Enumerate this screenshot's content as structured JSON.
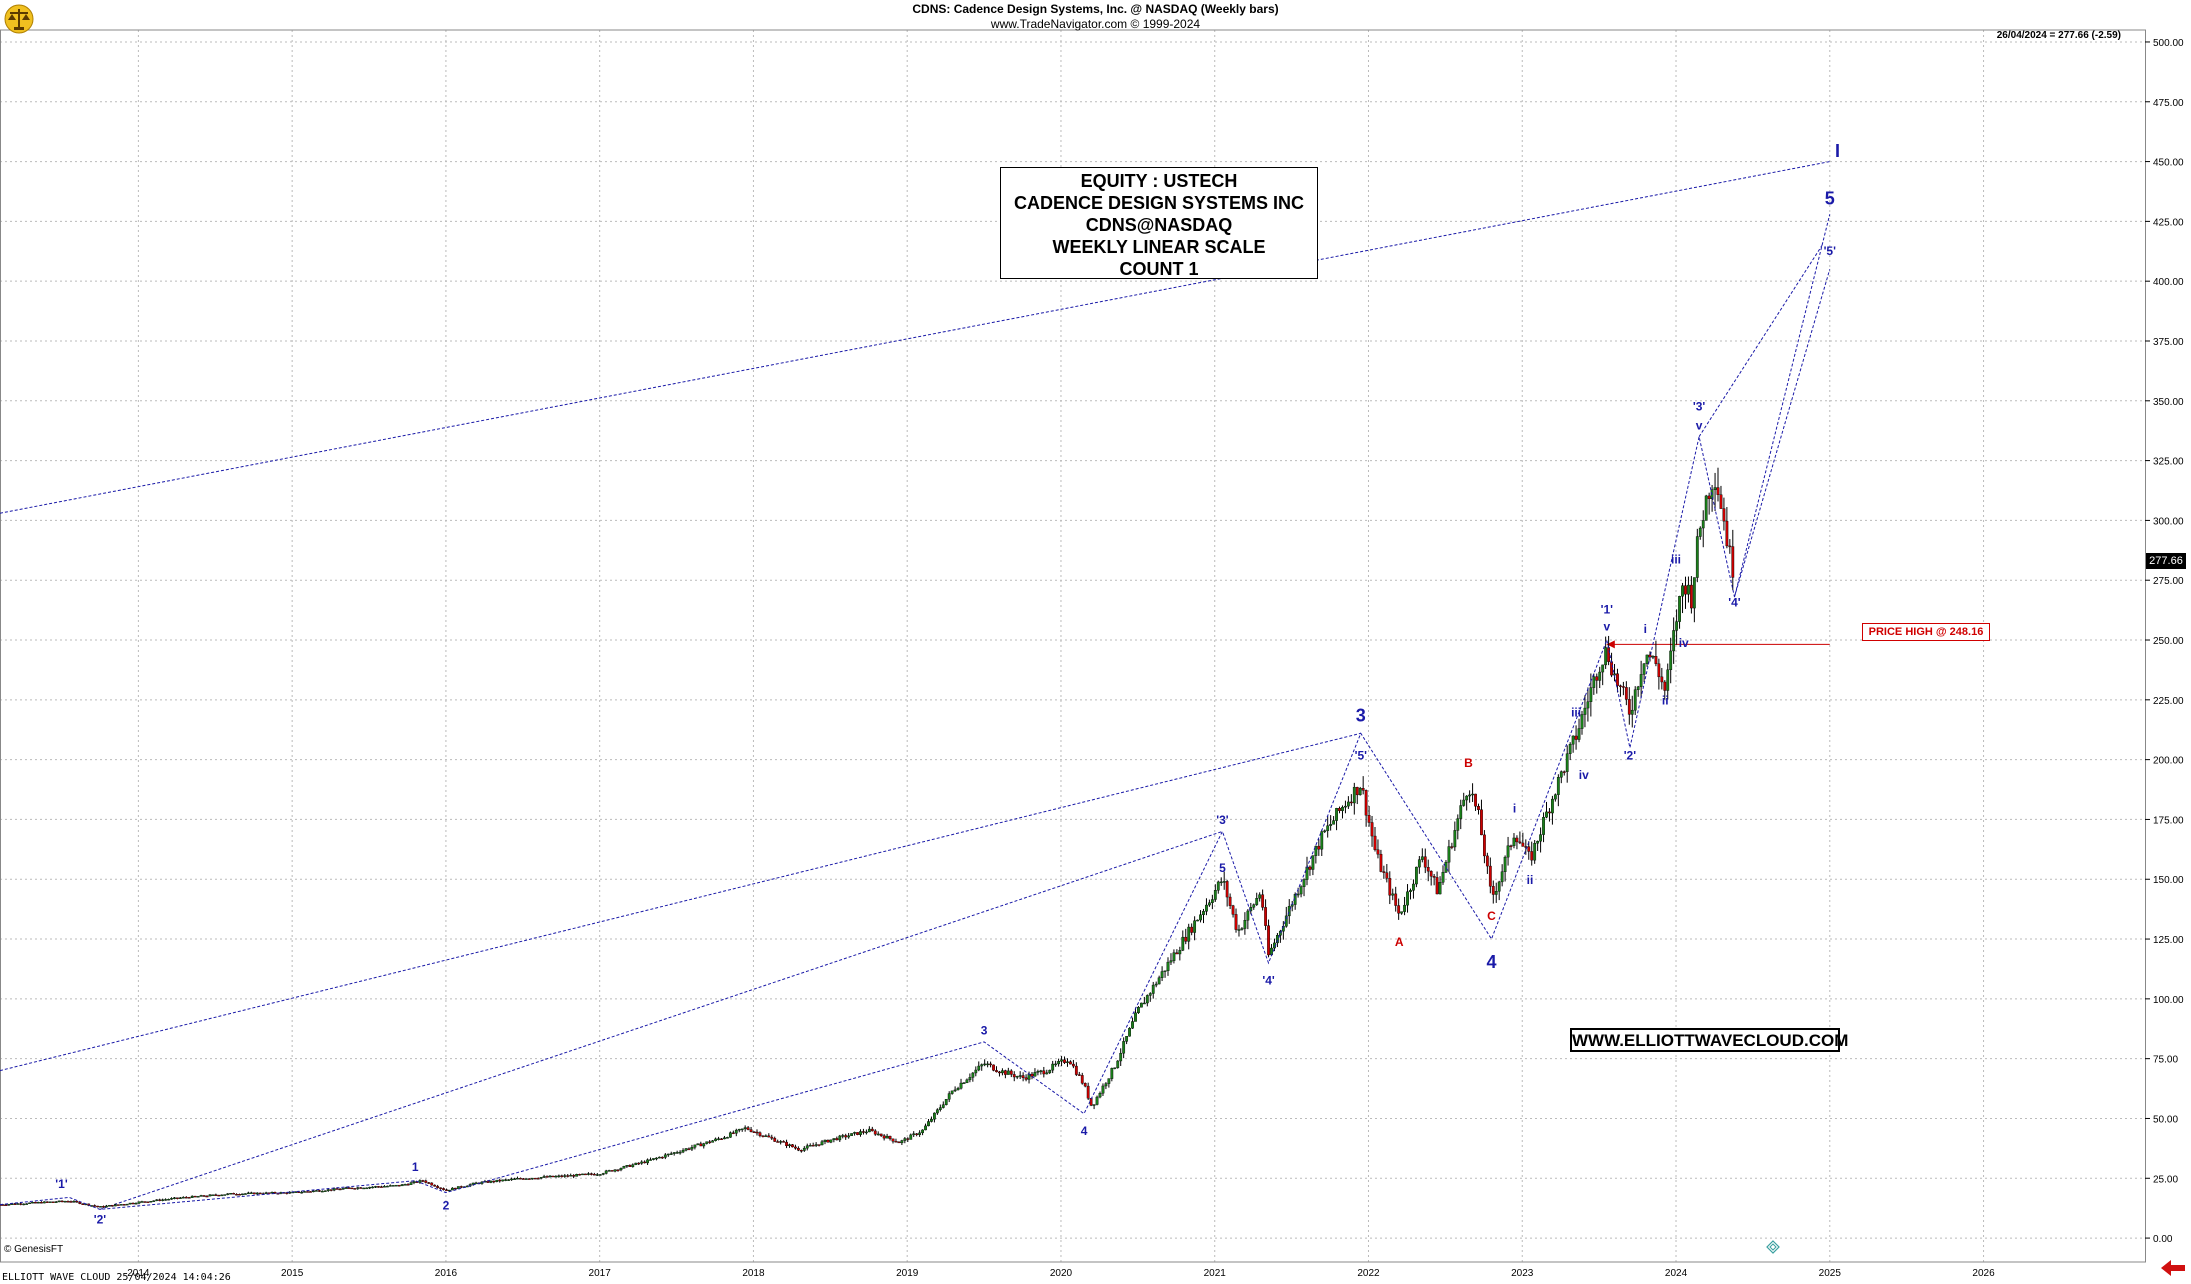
{
  "header": {
    "title": "CDNS:  Cadence Design Systems, Inc. @ NASDAQ  (Weekly bars)",
    "copyright": "www.TradeNavigator.com © 1999-2024"
  },
  "last_price_info": "26/04/2024 = 277.66 (-2.59)",
  "last_price_tag": "277.66",
  "info_box": {
    "line1": "EQUITY : USTECH",
    "line2": "CADENCE DESIGN SYSTEMS INC",
    "line3": "CDNS@NASDAQ",
    "line4": "WEEKLY LINEAR SCALE",
    "line5": "COUNT 1"
  },
  "website": "WWW.ELLIOTTWAVECLOUD.COM",
  "price_high_label": "PRICE HIGH @ 248.16",
  "footer": {
    "brand": "© GenesisFT",
    "text": "ELLIOTT WAVE CLOUD   25/04/2024 14:04:26"
  },
  "colors": {
    "wave_blue": "#1a1aa8",
    "wave_red": "#cc0000",
    "bull": "#1a7f1a",
    "bear": "#cc0000",
    "grid": "#bbbbbb"
  },
  "chart_data": {
    "type": "ohlc",
    "title": "CDNS: Cadence Design Systems, Inc. @ NASDAQ (Weekly bars)",
    "ylim": [
      -10,
      505
    ],
    "xlim": [
      2013.1,
      2027.05
    ],
    "y_ticks": [
      "0.00",
      "25.00",
      "50.00",
      "75.00",
      "100.00",
      "125.00",
      "150.00",
      "175.00",
      "200.00",
      "225.00",
      "250.00",
      "275.00",
      "300.00",
      "325.00",
      "350.00",
      "375.00",
      "400.00",
      "425.00",
      "450.00",
      "475.00",
      "500.00"
    ],
    "y_tick_values": [
      0,
      25,
      50,
      75,
      100,
      125,
      150,
      175,
      200,
      225,
      250,
      275,
      300,
      325,
      350,
      375,
      400,
      425,
      450,
      475,
      500
    ],
    "x_ticks": [
      "2014",
      "2015",
      "2016",
      "2017",
      "2018",
      "2019",
      "2020",
      "2021",
      "2022",
      "2023",
      "2024",
      "2025",
      "2026"
    ],
    "x_tick_values": [
      2014,
      2015,
      2016,
      2017,
      2018,
      2019,
      2020,
      2021,
      2022,
      2023,
      2024,
      2025,
      2026
    ],
    "price_series": [
      [
        2013.1,
        14
      ],
      [
        2013.4,
        15
      ],
      [
        2013.55,
        15.5
      ],
      [
        2013.75,
        13
      ],
      [
        2014.0,
        15
      ],
      [
        2014.3,
        17
      ],
      [
        2014.6,
        18.5
      ],
      [
        2015.0,
        19
      ],
      [
        2015.4,
        21
      ],
      [
        2015.7,
        22
      ],
      [
        2015.85,
        24
      ],
      [
        2016.0,
        20
      ],
      [
        2016.2,
        23
      ],
      [
        2016.5,
        25
      ],
      [
        2016.8,
        26
      ],
      [
        2017.0,
        27
      ],
      [
        2017.3,
        32
      ],
      [
        2017.6,
        38
      ],
      [
        2017.8,
        42
      ],
      [
        2017.95,
        46
      ],
      [
        2018.1,
        42
      ],
      [
        2018.3,
        37
      ],
      [
        2018.5,
        41
      ],
      [
        2018.75,
        45
      ],
      [
        2018.95,
        40
      ],
      [
        2019.1,
        45
      ],
      [
        2019.3,
        62
      ],
      [
        2019.5,
        73
      ],
      [
        2019.6,
        70
      ],
      [
        2019.75,
        67
      ],
      [
        2019.9,
        70
      ],
      [
        2020.05,
        75
      ],
      [
        2020.15,
        64
      ],
      [
        2020.2,
        55
      ],
      [
        2020.35,
        72
      ],
      [
        2020.5,
        95
      ],
      [
        2020.7,
        115
      ],
      [
        2020.9,
        135
      ],
      [
        2021.05,
        150
      ],
      [
        2021.15,
        128
      ],
      [
        2021.3,
        145
      ],
      [
        2021.35,
        118
      ],
      [
        2021.5,
        140
      ],
      [
        2021.7,
        168
      ],
      [
        2021.85,
        182
      ],
      [
        2021.95,
        190
      ],
      [
        2022.05,
        160
      ],
      [
        2022.2,
        135
      ],
      [
        2022.35,
        160
      ],
      [
        2022.45,
        145
      ],
      [
        2022.55,
        168
      ],
      [
        2022.65,
        190
      ],
      [
        2022.72,
        175
      ],
      [
        2022.8,
        142
      ],
      [
        2022.85,
        150
      ],
      [
        2022.95,
        170
      ],
      [
        2023.05,
        158
      ],
      [
        2023.2,
        185
      ],
      [
        2023.35,
        210
      ],
      [
        2023.5,
        240
      ],
      [
        2023.55,
        246
      ],
      [
        2023.6,
        235
      ],
      [
        2023.7,
        220
      ],
      [
        2023.8,
        245
      ],
      [
        2023.87,
        240
      ],
      [
        2023.93,
        228
      ],
      [
        2024.0,
        258
      ],
      [
        2024.05,
        275
      ],
      [
        2024.1,
        268
      ],
      [
        2024.15,
        295
      ],
      [
        2024.2,
        310
      ],
      [
        2024.25,
        320
      ],
      [
        2024.3,
        305
      ],
      [
        2024.35,
        285
      ],
      [
        2024.38,
        278
      ]
    ],
    "wave_lines": [
      [
        [
          2013.1,
          14
        ],
        [
          2013.55,
          17
        ],
        [
          2013.75,
          12
        ],
        [
          2015.8,
          24
        ],
        [
          2016.0,
          19
        ],
        [
          2019.5,
          82
        ],
        [
          2020.15,
          52
        ],
        [
          2021.05,
          170
        ],
        [
          2021.35,
          115
        ],
        [
          2021.95,
          211
        ],
        [
          2022.8,
          125
        ],
        [
          2023.55,
          250
        ],
        [
          2023.7,
          205
        ],
        [
          2024.15,
          335
        ],
        [
          2024.38,
          268
        ],
        [
          2025.0,
          428
        ]
      ]
    ],
    "channel_lines": [
      [
        [
          2013.1,
          70
        ],
        [
          2021.95,
          211
        ]
      ],
      [
        [
          2013.1,
          303
        ],
        [
          2025.0,
          450
        ]
      ],
      [
        [
          2013.75,
          12
        ],
        [
          2021.05,
          170
        ]
      ],
      [
        [
          2024.38,
          268
        ],
        [
          2025.0,
          405
        ]
      ],
      [
        [
          2024.15,
          335
        ],
        [
          2024.95,
          415
        ]
      ]
    ],
    "price_high_line": {
      "from": 2023.55,
      "to": 2025.0,
      "value": 248.16
    },
    "wave_labels": [
      {
        "text": "'1'",
        "x": 2013.5,
        "y": 21,
        "color": "blue",
        "size": "s"
      },
      {
        "text": "'2'",
        "x": 2013.75,
        "y": 6,
        "color": "blue",
        "size": "s"
      },
      {
        "text": "1",
        "x": 2015.8,
        "y": 28,
        "color": "blue",
        "size": "s"
      },
      {
        "text": "2",
        "x": 2016.0,
        "y": 12,
        "color": "blue",
        "size": "s"
      },
      {
        "text": "3",
        "x": 2019.5,
        "y": 85,
        "color": "blue",
        "size": "s"
      },
      {
        "text": "4",
        "x": 2020.15,
        "y": 43,
        "color": "blue",
        "size": "s"
      },
      {
        "text": "5",
        "x": 2021.05,
        "y": 153,
        "color": "blue",
        "size": "s"
      },
      {
        "text": "'3'",
        "x": 2021.05,
        "y": 173,
        "color": "blue",
        "size": "s"
      },
      {
        "text": "'4'",
        "x": 2021.35,
        "y": 106,
        "color": "blue",
        "size": "s"
      },
      {
        "text": "'5'",
        "x": 2021.95,
        "y": 200,
        "color": "blue",
        "size": "s"
      },
      {
        "text": "3",
        "x": 2021.95,
        "y": 216,
        "color": "blue",
        "size": "l"
      },
      {
        "text": "A",
        "x": 2022.2,
        "y": 122,
        "color": "red",
        "size": "s"
      },
      {
        "text": "B",
        "x": 2022.65,
        "y": 197,
        "color": "red",
        "size": "s"
      },
      {
        "text": "C",
        "x": 2022.8,
        "y": 133,
        "color": "red",
        "size": "s"
      },
      {
        "text": "4",
        "x": 2022.8,
        "y": 113,
        "color": "blue",
        "size": "l"
      },
      {
        "text": "i",
        "x": 2022.95,
        "y": 178,
        "color": "blue",
        "size": "s"
      },
      {
        "text": "ii",
        "x": 2023.05,
        "y": 148,
        "color": "blue",
        "size": "s"
      },
      {
        "text": "iii",
        "x": 2023.35,
        "y": 218,
        "color": "blue",
        "size": "s"
      },
      {
        "text": "iv",
        "x": 2023.4,
        "y": 192,
        "color": "blue",
        "size": "s"
      },
      {
        "text": "'1'",
        "x": 2023.55,
        "y": 261,
        "color": "blue",
        "size": "s"
      },
      {
        "text": "v",
        "x": 2023.55,
        "y": 254,
        "color": "blue",
        "size": "s"
      },
      {
        "text": "'2'",
        "x": 2023.7,
        "y": 200,
        "color": "blue",
        "size": "s"
      },
      {
        "text": "i",
        "x": 2023.8,
        "y": 253,
        "color": "blue",
        "size": "s"
      },
      {
        "text": "ii",
        "x": 2023.93,
        "y": 223,
        "color": "blue",
        "size": "s"
      },
      {
        "text": "iii",
        "x": 2024.0,
        "y": 282,
        "color": "blue",
        "size": "s"
      },
      {
        "text": "iv",
        "x": 2024.05,
        "y": 247,
        "color": "blue",
        "size": "s"
      },
      {
        "text": "'3'",
        "x": 2024.15,
        "y": 346,
        "color": "blue",
        "size": "s"
      },
      {
        "text": "v",
        "x": 2024.15,
        "y": 338,
        "color": "blue",
        "size": "s"
      },
      {
        "text": "'4'",
        "x": 2024.38,
        "y": 264,
        "color": "blue",
        "size": "s"
      },
      {
        "text": "'5'",
        "x": 2025.0,
        "y": 411,
        "color": "blue",
        "size": "s"
      },
      {
        "text": "5",
        "x": 2025.0,
        "y": 432,
        "color": "blue",
        "size": "l"
      },
      {
        "text": "I",
        "x": 2025.05,
        "y": 452,
        "color": "blue",
        "size": "l"
      }
    ]
  }
}
